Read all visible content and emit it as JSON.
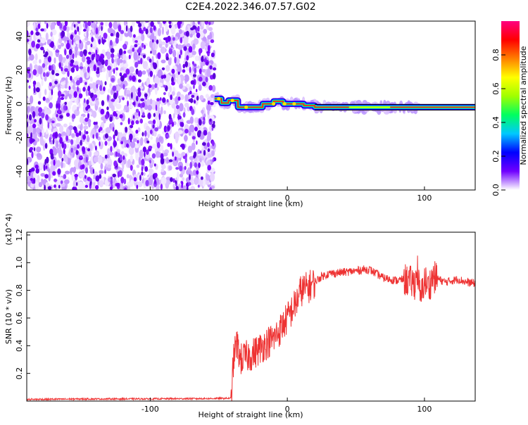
{
  "title": "C2E4.2022.346.07.57.G02",
  "chart_data": [
    {
      "type": "heatmap",
      "xlabel": "Height of straight line (km)",
      "ylabel": "Frequency (Hz)",
      "xlim": [
        -190,
        137
      ],
      "ylim": [
        -51,
        49
      ],
      "xticks": [
        -100,
        0,
        100
      ],
      "yticks": [
        -40,
        -20,
        0,
        20,
        40
      ],
      "colorbar": {
        "label": "Normalized spectral amplitude",
        "range": [
          0,
          1
        ],
        "ticks": [
          0.0,
          0.2,
          0.4,
          0.6,
          0.8
        ],
        "colors": [
          "#ffffff",
          "#7000ff",
          "#0000ff",
          "#00c8ff",
          "#00ff60",
          "#a0ff00",
          "#ffff00",
          "#ff8000",
          "#ff0000",
          "#ff0080"
        ]
      },
      "noise_region_x": [
        -190,
        -53
      ],
      "signal_track": [
        {
          "x": -53,
          "y": 3
        },
        {
          "x": -48,
          "y": 0.5
        },
        {
          "x": -43,
          "y": 2
        },
        {
          "x": -36,
          "y": -2
        },
        {
          "x": -25,
          "y": -2
        },
        {
          "x": -18,
          "y": 0
        },
        {
          "x": -10,
          "y": 1.5
        },
        {
          "x": -3,
          "y": 0
        },
        {
          "x": 5,
          "y": 0
        },
        {
          "x": 12,
          "y": -1
        },
        {
          "x": 20,
          "y": -2
        },
        {
          "x": 137,
          "y": -2
        }
      ],
      "signal_extent_x": [
        -53,
        98
      ]
    },
    {
      "type": "line",
      "xlabel": "Height of straight line (km)",
      "ylabel": "SNR (10 * v/v)",
      "y_multiplier": "(x10^4)",
      "xlim": [
        -190,
        137
      ],
      "ylim": [
        0,
        1.22
      ],
      "xticks": [
        -100,
        0,
        100
      ],
      "yticks": [
        0.2,
        0.4,
        0.6,
        0.8,
        1.0,
        1.2
      ],
      "series": [
        {
          "color": "#ee3333",
          "x": [
            -190,
            -150,
            -100,
            -60,
            -41,
            -39,
            -37,
            -34,
            -30,
            -25,
            -20,
            -15,
            -10,
            -5,
            0,
            3,
            6,
            10,
            15,
            20,
            25,
            30,
            40,
            50,
            55,
            60,
            65,
            70,
            75,
            80,
            85,
            90,
            93,
            95,
            97,
            100,
            103,
            106,
            110,
            115,
            120,
            125,
            130,
            137
          ],
          "y": [
            0.012,
            0.015,
            0.016,
            0.018,
            0.02,
            0.32,
            0.42,
            0.3,
            0.32,
            0.34,
            0.38,
            0.42,
            0.45,
            0.52,
            0.6,
            0.65,
            0.7,
            0.8,
            0.82,
            0.86,
            0.9,
            0.92,
            0.93,
            0.94,
            0.95,
            0.95,
            0.92,
            0.89,
            0.88,
            0.87,
            0.88,
            0.86,
            0.85,
            0.95,
            0.72,
            0.88,
            0.82,
            0.9,
            0.88,
            0.86,
            0.87,
            0.88,
            0.86,
            0.85
          ]
        }
      ]
    }
  ]
}
